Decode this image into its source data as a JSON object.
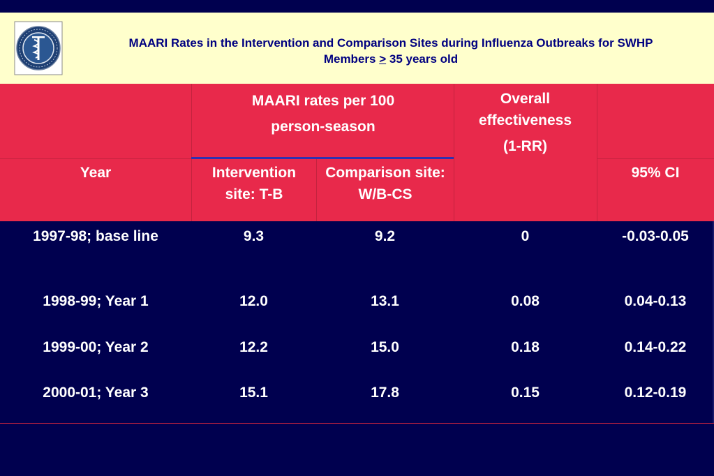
{
  "slide": {
    "title_line1": "MAARI Rates in the Intervention and Comparison Sites during Influenza Outbreaks for SWHP",
    "title_line2_prefix": "Members ",
    "title_line2_symbol": ">",
    "title_line2_suffix": " 35 years old",
    "seal_text": "BAYLOR COLLEGE OF MEDICINE • RESEARCH • EDUCATION • SERVICE"
  },
  "colors": {
    "background": "#00004f",
    "title_band": "#ffffcc",
    "title_text": "#000080",
    "header_band": "#e8294b",
    "text": "#ffffff"
  },
  "table": {
    "header": {
      "group_rates": "MAARI rates per 100 person-season",
      "overall": "Overall effectiveness",
      "overall_sub": "(1-RR)",
      "year": "Year",
      "intervention": "Intervention site: T-B",
      "comparison": "Comparison site: W/B-CS",
      "ci": "95% CI"
    },
    "rows": [
      {
        "year": "1997-98; base line",
        "intervention": "9.3",
        "comparison": "9.2",
        "effectiveness": "0",
        "ci": "-0.03-0.05"
      },
      {
        "year": "1998-99; Year 1",
        "intervention": "12.0",
        "comparison": "13.1",
        "effectiveness": "0.08",
        "ci": "0.04-0.13"
      },
      {
        "year": "1999-00; Year 2",
        "intervention": "12.2",
        "comparison": "15.0",
        "effectiveness": "0.18",
        "ci": "0.14-0.22"
      },
      {
        "year": "2000-01; Year 3",
        "intervention": "15.1",
        "comparison": "17.8",
        "effectiveness": "0.15",
        "ci": "0.12-0.19"
      }
    ]
  }
}
